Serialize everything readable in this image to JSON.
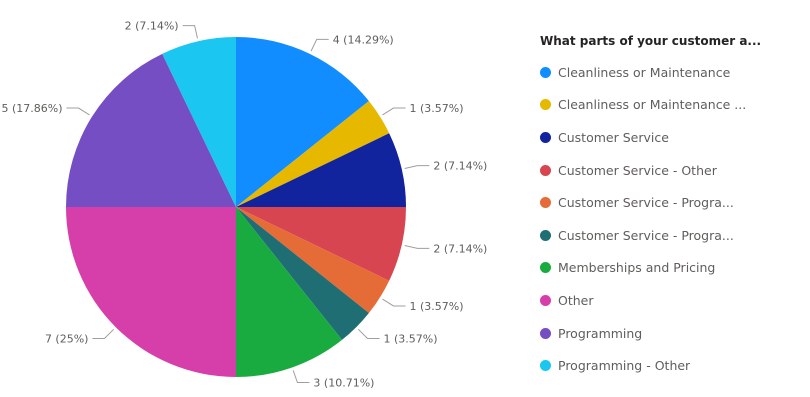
{
  "chart_data": {
    "type": "pie",
    "legend_title": "What parts of your customer a...",
    "legend_position": "right",
    "slices": [
      {
        "label": "Cleanliness or Maintenance",
        "value": 4,
        "data_label": "4 (14.29%)",
        "color": "#118DFF"
      },
      {
        "label": "Cleanliness or Maintenance ...",
        "value": 1,
        "data_label": "1 (3.57%)",
        "color": "#E6B800"
      },
      {
        "label": "Customer Service",
        "value": 2,
        "data_label": "2 (7.14%)",
        "color": "#12239E"
      },
      {
        "label": "Customer Service  -  Other",
        "value": 2,
        "data_label": "2 (7.14%)",
        "color": "#D64550"
      },
      {
        "label": "Customer Service  -  Progra...",
        "value": 1,
        "data_label": "1 (3.57%)",
        "color": "#E66C37"
      },
      {
        "label": "Customer Service  -  Progra...",
        "value": 1,
        "data_label": "1 (3.57%)",
        "color": "#1F6E73"
      },
      {
        "label": "Memberships and Pricing",
        "value": 3,
        "data_label": "3 (10.71%)",
        "color": "#1AAB40"
      },
      {
        "label": "Other",
        "value": 7,
        "data_label": "7 (25%)",
        "color": "#D63EAA"
      },
      {
        "label": "Programming",
        "value": 5,
        "data_label": "5 (17.86%)",
        "color": "#744EC2"
      },
      {
        "label": "Programming  -  Other",
        "value": 2,
        "data_label": "2 (7.14%)",
        "color": "#1BC6F0"
      }
    ]
  }
}
